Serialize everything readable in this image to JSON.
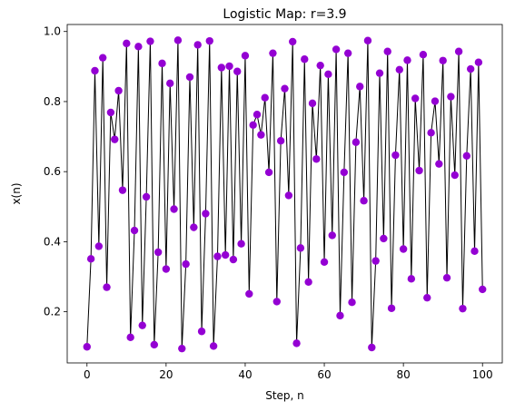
{
  "chart_data": {
    "type": "line",
    "title": "Logistic Map: r=3.9",
    "xlabel": "Step, n",
    "ylabel": "x(n)",
    "xlim": [
      -5,
      105
    ],
    "ylim": [
      0.054,
      1.02
    ],
    "xticks": [
      0,
      20,
      40,
      60,
      80,
      100
    ],
    "yticks": [
      0.2,
      0.4,
      0.6,
      0.8,
      1.0
    ],
    "xtick_labels": [
      "0",
      "20",
      "40",
      "60",
      "80",
      "100"
    ],
    "ytick_labels": [
      "0.2",
      "0.4",
      "0.6",
      "0.8",
      "1.0"
    ],
    "grid": false,
    "line_color": "#000000",
    "marker_color": "#9400D3",
    "series": [
      {
        "x": [
          0,
          1,
          2,
          3,
          4,
          5,
          6,
          7,
          8,
          9,
          10,
          11,
          12,
          13,
          14,
          15,
          16,
          17,
          18,
          19,
          20,
          21,
          22,
          23,
          24,
          25,
          26,
          27,
          28,
          29,
          30,
          31,
          32,
          33,
          34,
          35,
          36,
          37,
          38,
          39,
          40,
          41,
          42,
          43,
          44,
          45,
          46,
          47,
          48,
          49,
          50,
          51,
          52,
          53,
          54,
          55,
          56,
          57,
          58,
          59,
          60,
          61,
          62,
          63,
          64,
          65,
          66,
          67,
          68,
          69,
          70,
          71,
          72,
          73,
          74,
          75,
          76,
          77,
          78,
          79,
          80,
          81,
          82,
          83,
          84,
          85,
          86,
          87,
          88,
          89,
          90,
          91,
          92,
          93,
          94,
          95,
          96,
          97,
          98,
          99,
          100
        ],
        "values": [
          0.1,
          0.351,
          0.888,
          0.387,
          0.925,
          0.27,
          0.769,
          0.692,
          0.831,
          0.547,
          0.966,
          0.127,
          0.432,
          0.957,
          0.161,
          0.528,
          0.972,
          0.106,
          0.37,
          0.909,
          0.322,
          0.852,
          0.493,
          0.975,
          0.095,
          0.336,
          0.87,
          0.441,
          0.962,
          0.144,
          0.48,
          0.973,
          0.102,
          0.358,
          0.897,
          0.362,
          0.901,
          0.349,
          0.886,
          0.394,
          0.931,
          0.251,
          0.733,
          0.763,
          0.705,
          0.811,
          0.598,
          0.938,
          0.229,
          0.688,
          0.837,
          0.532,
          0.971,
          0.11,
          0.382,
          0.921,
          0.285,
          0.795,
          0.636,
          0.903,
          0.342,
          0.878,
          0.418,
          0.949,
          0.189,
          0.598,
          0.938,
          0.227,
          0.684,
          0.843,
          0.517,
          0.974,
          0.098,
          0.345,
          0.881,
          0.409,
          0.943,
          0.21,
          0.647,
          0.891,
          0.379,
          0.918,
          0.294,
          0.809,
          0.603,
          0.934,
          0.24,
          0.711,
          0.801,
          0.622,
          0.917,
          0.297,
          0.814,
          0.59,
          0.943,
          0.209,
          0.645,
          0.893,
          0.373,
          0.912,
          0.264
        ]
      }
    ]
  }
}
